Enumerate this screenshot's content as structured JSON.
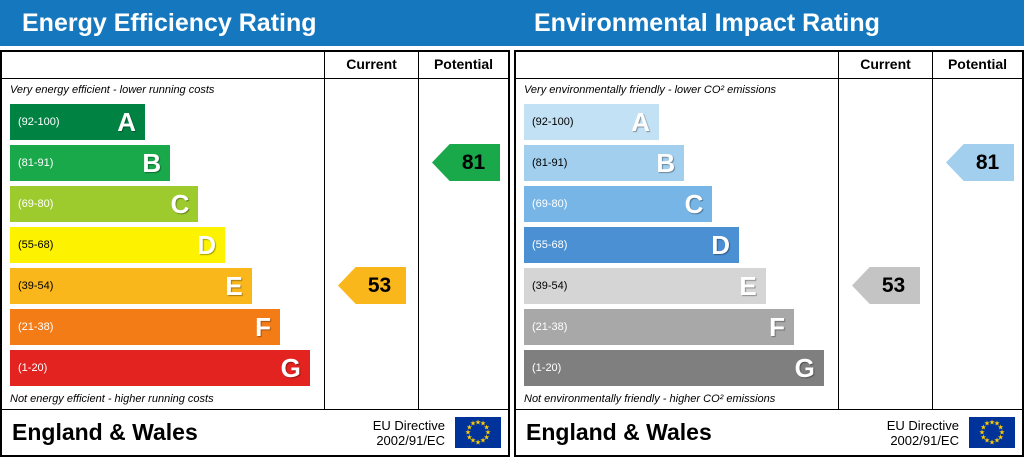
{
  "columns": {
    "current": "Current",
    "potential": "Potential"
  },
  "colors": {
    "header_bar": "#1577bd",
    "eu_flag_blue": "#003399",
    "eu_flag_stars": "#ffcc00"
  },
  "panels": [
    {
      "title": "Energy Efficiency Rating",
      "top_note": "Very energy efficient - lower running costs",
      "bottom_note": "Not energy efficient - higher running costs",
      "bands": [
        {
          "letter": "A",
          "range": "(92-100)",
          "color": "#008342",
          "range_color": "#ffffff",
          "width_pct": 43
        },
        {
          "letter": "B",
          "range": "(81-91)",
          "color": "#19a94a",
          "range_color": "#ffffff",
          "width_pct": 51
        },
        {
          "letter": "C",
          "range": "(69-80)",
          "color": "#9dcb2e",
          "range_color": "#ffffff",
          "width_pct": 60
        },
        {
          "letter": "D",
          "range": "(55-68)",
          "color": "#fdf200",
          "range_color": "#000000",
          "width_pct": 68.5
        },
        {
          "letter": "E",
          "range": "(39-54)",
          "color": "#fab71c",
          "range_color": "#000000",
          "width_pct": 77
        },
        {
          "letter": "F",
          "range": "(21-38)",
          "color": "#f47c17",
          "range_color": "#ffffff",
          "width_pct": 86
        },
        {
          "letter": "G",
          "range": "(1-20)",
          "color": "#e2231f",
          "range_color": "#ffffff",
          "width_pct": 95.5
        }
      ],
      "current": {
        "value": 53,
        "band": "E",
        "band_index": 4,
        "color": "#fab71c"
      },
      "potential": {
        "value": 81,
        "band": "B",
        "band_index": 1,
        "color": "#19a94a"
      },
      "footer": {
        "region": "England & Wales",
        "directive_line1": "EU Directive",
        "directive_line2": "2002/91/EC"
      }
    },
    {
      "title": "Environmental Impact Rating",
      "top_note": "Very environmentally friendly - lower CO² emissions",
      "bottom_note": "Not environmentally friendly - higher CO² emissions",
      "bands": [
        {
          "letter": "A",
          "range": "(92-100)",
          "color": "#c3e1f4",
          "range_color": "#000000",
          "width_pct": 43
        },
        {
          "letter": "B",
          "range": "(81-91)",
          "color": "#a3cfee",
          "range_color": "#000000",
          "width_pct": 51
        },
        {
          "letter": "C",
          "range": "(69-80)",
          "color": "#76b5e5",
          "range_color": "#ffffff",
          "width_pct": 60
        },
        {
          "letter": "D",
          "range": "(55-68)",
          "color": "#4a90d2",
          "range_color": "#ffffff",
          "width_pct": 68.5
        },
        {
          "letter": "E",
          "range": "(39-54)",
          "color": "#d5d5d5",
          "range_color": "#000000",
          "width_pct": 77
        },
        {
          "letter": "F",
          "range": "(21-38)",
          "color": "#a8a8a8",
          "range_color": "#ffffff",
          "width_pct": 86
        },
        {
          "letter": "G",
          "range": "(1-20)",
          "color": "#7f7f7f",
          "range_color": "#ffffff",
          "width_pct": 95.5
        }
      ],
      "current": {
        "value": 53,
        "band": "E",
        "band_index": 4,
        "color": "#c4c4c4"
      },
      "potential": {
        "value": 81,
        "band": "B",
        "band_index": 1,
        "color": "#a3cfee"
      },
      "footer": {
        "region": "England & Wales",
        "directive_line1": "EU Directive",
        "directive_line2": "2002/91/EC"
      }
    }
  ],
  "chart_data": [
    {
      "type": "bar",
      "title": "Energy Efficiency Rating",
      "orientation": "horizontal",
      "categories": [
        "A (92-100)",
        "B (81-91)",
        "C (69-80)",
        "D (55-68)",
        "E (39-54)",
        "F (21-38)",
        "G (1-20)"
      ],
      "values": [
        43,
        51,
        60,
        68.5,
        77,
        86,
        95.5
      ],
      "series": [
        {
          "name": "Current",
          "value": 53,
          "band": "E"
        },
        {
          "name": "Potential",
          "value": 81,
          "band": "B"
        }
      ],
      "ylim": [
        1,
        100
      ],
      "notes": [
        "Very energy efficient - lower running costs",
        "Not energy efficient - higher running costs"
      ]
    },
    {
      "type": "bar",
      "title": "Environmental Impact Rating",
      "orientation": "horizontal",
      "categories": [
        "A (92-100)",
        "B (81-91)",
        "C (69-80)",
        "D (55-68)",
        "E (39-54)",
        "F (21-38)",
        "G (1-20)"
      ],
      "values": [
        43,
        51,
        60,
        68.5,
        77,
        86,
        95.5
      ],
      "series": [
        {
          "name": "Current",
          "value": 53,
          "band": "E"
        },
        {
          "name": "Potential",
          "value": 81,
          "band": "B"
        }
      ],
      "ylim": [
        1,
        100
      ],
      "notes": [
        "Very environmentally friendly - lower CO² emissions",
        "Not environmentally friendly - higher CO² emissions"
      ]
    }
  ]
}
